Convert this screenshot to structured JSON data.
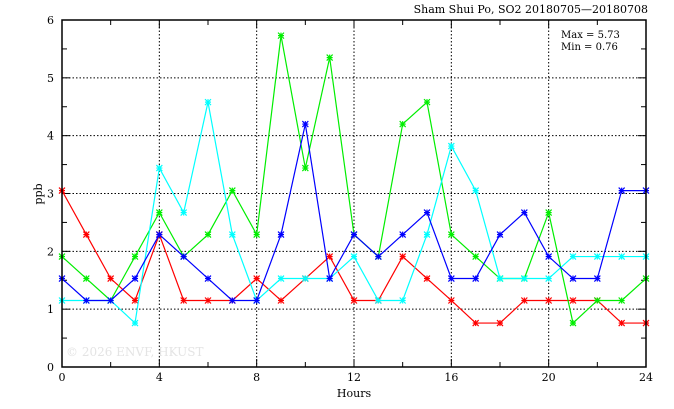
{
  "chart_data": {
    "type": "line",
    "title": "Sham Shui Po, SO2 20180705—20180708",
    "xlabel": "Hours",
    "ylabel": "ppb",
    "xlim": [
      0,
      24
    ],
    "ylim": [
      0,
      6
    ],
    "xticks": [
      0,
      4,
      8,
      12,
      16,
      20,
      24
    ],
    "yticks": [
      0,
      1,
      2,
      3,
      4,
      5,
      6
    ],
    "grid": true,
    "annotations": [
      "Max = 5.73",
      "Min = 0.76"
    ],
    "watermark": "© 2026  ENVF, HKUST",
    "x": [
      0,
      1,
      2,
      3,
      4,
      5,
      6,
      7,
      8,
      9,
      10,
      11,
      12,
      13,
      14,
      15,
      16,
      17,
      18,
      19,
      20,
      21,
      22,
      23,
      24
    ],
    "series": [
      {
        "name": "red",
        "color": "#ff0000",
        "values": [
          3.05,
          2.29,
          1.53,
          1.15,
          2.29,
          1.15,
          1.15,
          1.15,
          1.53,
          1.15,
          1.53,
          1.91,
          1.15,
          1.15,
          1.91,
          1.53,
          1.15,
          0.76,
          0.76,
          1.15,
          1.15,
          1.15,
          1.15,
          0.76,
          0.76
        ]
      },
      {
        "name": "green",
        "color": "#00ee00",
        "values": [
          1.91,
          1.53,
          1.15,
          1.91,
          2.67,
          1.91,
          2.29,
          3.05,
          2.29,
          5.73,
          3.44,
          5.35,
          2.29,
          1.91,
          4.2,
          4.58,
          2.29,
          1.91,
          1.53,
          1.53,
          2.67,
          0.76,
          1.15,
          1.15,
          1.53
        ]
      },
      {
        "name": "cyan",
        "color": "#00ffff",
        "values": [
          1.15,
          1.15,
          1.15,
          0.76,
          3.44,
          2.67,
          4.58,
          2.29,
          1.15,
          1.53,
          1.53,
          1.53,
          1.91,
          1.15,
          1.15,
          2.29,
          3.82,
          3.05,
          1.53,
          1.53,
          1.53,
          1.91,
          1.91,
          1.91,
          1.91
        ]
      },
      {
        "name": "blue",
        "color": "#0000ff",
        "values": [
          1.53,
          1.15,
          1.15,
          1.53,
          2.29,
          1.91,
          1.53,
          1.15,
          1.15,
          2.29,
          4.2,
          1.53,
          2.29,
          1.91,
          2.29,
          2.67,
          1.53,
          1.53,
          2.29,
          2.67,
          1.91,
          1.53,
          1.53,
          3.05,
          3.05
        ]
      }
    ]
  }
}
